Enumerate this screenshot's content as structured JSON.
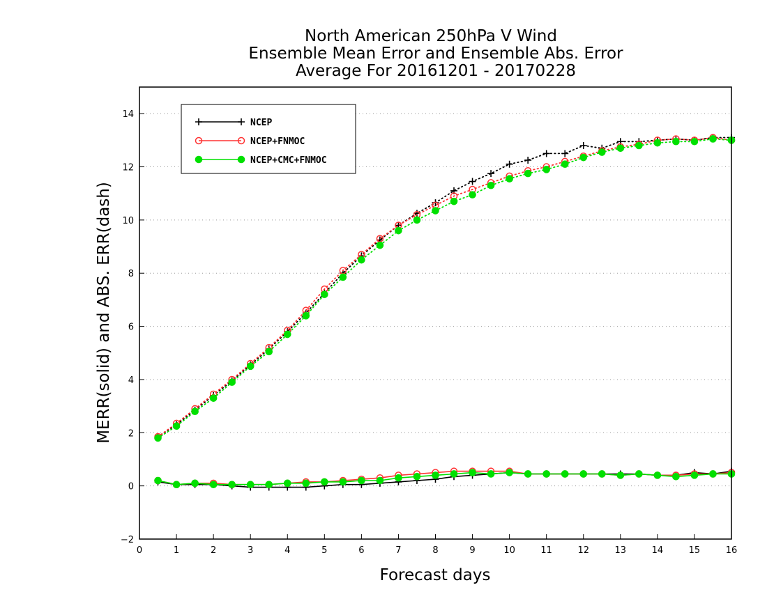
{
  "chart_data": {
    "type": "line",
    "title_lines": [
      "North American 250hPa V Wind",
      "Ensemble Mean Error and Ensemble Abs. Error",
      "Average For 20161201 - 20170228"
    ],
    "xlabel": "Forecast days",
    "ylabel": "MERR(solid) and ABS. ERR(dash)",
    "xlim": [
      0,
      16
    ],
    "ylim": [
      -2,
      15
    ],
    "x_ticks": [
      "0",
      "1",
      "2",
      "3",
      "4",
      "5",
      "6",
      "7",
      "8",
      "9",
      "10",
      "11",
      "12",
      "13",
      "14",
      "15",
      "16"
    ],
    "y_ticks": [
      "−2",
      "0",
      "2",
      "4",
      "6",
      "8",
      "10",
      "12",
      "14"
    ],
    "grid": "horizontal dotted",
    "legend_position": "top-left",
    "x": [
      0.5,
      1,
      1.5,
      2,
      2.5,
      3,
      3.5,
      4,
      4.5,
      5,
      5.5,
      6,
      6.5,
      7,
      7.5,
      8,
      8.5,
      9,
      9.5,
      10,
      10.5,
      11,
      11.5,
      12,
      12.5,
      13,
      13.5,
      14,
      14.5,
      15,
      15.5,
      16
    ],
    "series": [
      {
        "name": "NCEP",
        "color": "#000000",
        "marker": "plus",
        "mean_error": [
          0.15,
          0.05,
          0.05,
          0.05,
          0.0,
          -0.05,
          -0.05,
          -0.05,
          -0.05,
          0.0,
          0.05,
          0.05,
          0.1,
          0.15,
          0.2,
          0.25,
          0.35,
          0.4,
          0.45,
          0.5,
          0.45,
          0.45,
          0.45,
          0.45,
          0.45,
          0.45,
          0.45,
          0.4,
          0.4,
          0.5,
          0.45,
          0.55
        ],
        "abs_error": [
          1.85,
          2.3,
          2.85,
          3.4,
          3.95,
          4.55,
          5.15,
          5.8,
          6.5,
          7.25,
          8.0,
          8.65,
          9.25,
          9.8,
          10.25,
          10.65,
          11.1,
          11.45,
          11.75,
          12.1,
          12.25,
          12.5,
          12.5,
          12.8,
          12.7,
          12.95,
          12.95,
          13.0,
          13.05,
          13.0,
          13.1,
          13.1
        ]
      },
      {
        "name": "NCEP+FNMOC",
        "color": "#ff3333",
        "marker": "open-circle",
        "mean_error": [
          0.2,
          0.05,
          0.1,
          0.1,
          0.05,
          0.05,
          0.05,
          0.1,
          0.15,
          0.15,
          0.2,
          0.25,
          0.3,
          0.4,
          0.45,
          0.5,
          0.55,
          0.55,
          0.55,
          0.55,
          0.45,
          0.45,
          0.45,
          0.45,
          0.45,
          0.4,
          0.45,
          0.4,
          0.4,
          0.45,
          0.45,
          0.5
        ],
        "abs_error": [
          1.85,
          2.35,
          2.9,
          3.45,
          4.0,
          4.6,
          5.2,
          5.85,
          6.6,
          7.4,
          8.1,
          8.7,
          9.3,
          9.8,
          10.2,
          10.55,
          10.9,
          11.15,
          11.4,
          11.65,
          11.85,
          12.0,
          12.2,
          12.4,
          12.6,
          12.75,
          12.85,
          13.0,
          13.05,
          13.0,
          13.1,
          13.0
        ]
      },
      {
        "name": "NCEP+CMC+FNMOC",
        "color": "#00e000",
        "marker": "filled-circle",
        "mean_error": [
          0.2,
          0.05,
          0.1,
          0.05,
          0.05,
          0.05,
          0.05,
          0.1,
          0.1,
          0.15,
          0.15,
          0.2,
          0.2,
          0.3,
          0.35,
          0.4,
          0.45,
          0.5,
          0.45,
          0.5,
          0.45,
          0.45,
          0.45,
          0.45,
          0.45,
          0.4,
          0.45,
          0.4,
          0.35,
          0.4,
          0.45,
          0.45
        ],
        "abs_error": [
          1.8,
          2.25,
          2.8,
          3.3,
          3.9,
          4.5,
          5.05,
          5.7,
          6.4,
          7.2,
          7.85,
          8.5,
          9.05,
          9.6,
          10.0,
          10.35,
          10.7,
          10.95,
          11.3,
          11.55,
          11.75,
          11.9,
          12.1,
          12.35,
          12.55,
          12.7,
          12.8,
          12.9,
          12.95,
          12.95,
          13.05,
          13.0
        ]
      }
    ]
  }
}
